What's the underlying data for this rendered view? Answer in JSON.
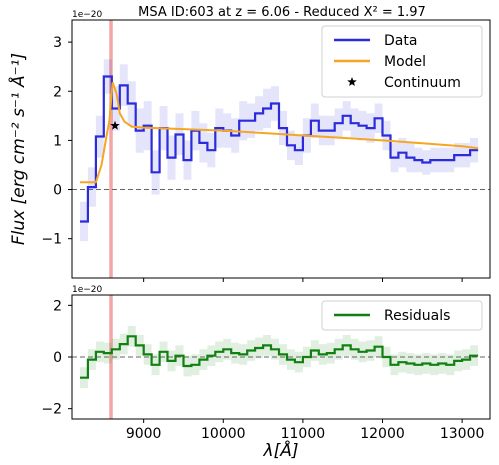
{
  "chart_data": [
    {
      "type": "line",
      "title": "MSA ID:603 at z = 6.06 - Reduced X² = 1.97",
      "ylabel": "Flux [erg cm⁻² s⁻¹ Å⁻¹]",
      "xlabel": "",
      "scale_note": "1e−20",
      "xlim": [
        8100,
        13350
      ],
      "ylim": [
        -1.8,
        3.45
      ],
      "yticks": [
        -1,
        0,
        1,
        2,
        3
      ],
      "xticks": [
        9000,
        10000,
        11000,
        12000,
        13000
      ],
      "show_xtick_labels": false,
      "zero_line": true,
      "vline": {
        "x": 8590,
        "color": "#f4a6a6"
      },
      "legend": {
        "position": "top-right",
        "entries": [
          "Data",
          "Model",
          "Continuum"
        ]
      },
      "series": [
        {
          "name": "Data",
          "style": "step",
          "color": "#2b2bdb",
          "x": [
            8250,
            8350,
            8450,
            8550,
            8650,
            8750,
            8850,
            8950,
            9050,
            9150,
            9250,
            9350,
            9450,
            9550,
            9650,
            9750,
            9850,
            9950,
            10050,
            10150,
            10250,
            10350,
            10450,
            10550,
            10650,
            10750,
            10850,
            10950,
            11050,
            11150,
            11250,
            11350,
            11450,
            11550,
            11650,
            11750,
            11850,
            11950,
            12050,
            12150,
            12250,
            12350,
            12450,
            12550,
            12650,
            12750,
            12850,
            12950,
            13050,
            13150
          ],
          "y": [
            -0.65,
            0.05,
            1.08,
            2.3,
            1.65,
            2.12,
            1.75,
            1.2,
            1.3,
            0.35,
            1.25,
            0.65,
            1.12,
            0.6,
            1.2,
            0.95,
            0.8,
            1.25,
            1.2,
            1.1,
            1.4,
            1.4,
            1.55,
            1.65,
            1.75,
            1.25,
            0.9,
            0.8,
            1.1,
            1.4,
            1.2,
            1.2,
            1.35,
            1.5,
            1.35,
            1.3,
            1.25,
            1.45,
            1.1,
            0.65,
            0.75,
            0.65,
            0.6,
            0.55,
            0.6,
            0.6,
            0.6,
            0.7,
            0.7,
            0.8
          ],
          "err_low": [
            -1.05,
            -0.35,
            0.65,
            1.95,
            1.2,
            1.7,
            1.3,
            0.75,
            0.8,
            -0.1,
            0.8,
            0.2,
            0.7,
            0.2,
            0.8,
            0.55,
            0.45,
            0.85,
            0.85,
            0.75,
            1.0,
            1.05,
            1.2,
            1.25,
            1.4,
            0.9,
            0.6,
            0.5,
            0.75,
            1.05,
            0.9,
            0.9,
            1.05,
            1.2,
            1.05,
            1.0,
            0.95,
            1.15,
            0.8,
            0.35,
            0.45,
            0.35,
            0.35,
            0.3,
            0.35,
            0.35,
            0.35,
            0.45,
            0.45,
            0.55
          ],
          "err_high": [
            -0.25,
            0.45,
            1.5,
            2.65,
            2.1,
            2.55,
            2.2,
            1.65,
            1.8,
            0.8,
            1.7,
            1.1,
            1.55,
            1.0,
            1.6,
            1.35,
            1.15,
            1.65,
            1.55,
            1.45,
            1.8,
            1.75,
            1.9,
            2.05,
            2.1,
            1.6,
            1.2,
            1.1,
            1.45,
            1.75,
            1.5,
            1.5,
            1.65,
            1.8,
            1.65,
            1.6,
            1.55,
            1.75,
            1.4,
            0.95,
            1.05,
            0.95,
            0.85,
            0.8,
            0.85,
            0.85,
            0.85,
            0.95,
            0.95,
            1.05
          ]
        },
        {
          "name": "Model",
          "style": "line",
          "color": "#f5a623",
          "x": [
            8200,
            8400,
            8470,
            8530,
            8570,
            8610,
            8660,
            8700,
            8760,
            8850,
            9000,
            9500,
            10000,
            10500,
            11000,
            11500,
            12000,
            12500,
            13000,
            13200
          ],
          "y": [
            0.15,
            0.15,
            0.5,
            1.05,
            1.4,
            2.18,
            1.95,
            1.55,
            1.38,
            1.28,
            1.26,
            1.23,
            1.2,
            1.15,
            1.1,
            1.05,
            1.0,
            0.94,
            0.88,
            0.84
          ]
        },
        {
          "name": "Continuum",
          "style": "marker",
          "color": "#000000",
          "x": [
            8640
          ],
          "y": [
            1.3
          ]
        }
      ]
    },
    {
      "type": "line",
      "title": "",
      "scale_note": "1e−20",
      "xlabel": "λ[Å]",
      "ylabel": "",
      "xlim": [
        8100,
        13350
      ],
      "ylim": [
        -2.4,
        2.4
      ],
      "yticks": [
        -2,
        0,
        2
      ],
      "xticks": [
        9000,
        10000,
        11000,
        12000,
        13000
      ],
      "show_xtick_labels": true,
      "zero_line": true,
      "vline": {
        "x": 8590,
        "color": "#f4a6a6"
      },
      "legend": {
        "position": "top-right",
        "entries": [
          "Residuals"
        ]
      },
      "series": [
        {
          "name": "Residuals",
          "style": "step",
          "color": "#108010",
          "x": [
            8250,
            8350,
            8450,
            8550,
            8650,
            8750,
            8850,
            8950,
            9050,
            9150,
            9250,
            9350,
            9450,
            9550,
            9650,
            9750,
            9850,
            9950,
            10050,
            10150,
            10250,
            10350,
            10450,
            10550,
            10650,
            10750,
            10850,
            10950,
            11050,
            11150,
            11250,
            11350,
            11450,
            11550,
            11650,
            11750,
            11850,
            11950,
            12050,
            12150,
            12250,
            12350,
            12450,
            12550,
            12650,
            12750,
            12850,
            12950,
            13050,
            13150
          ],
          "y": [
            -0.8,
            -0.1,
            0.2,
            0.15,
            0.3,
            0.5,
            0.8,
            0.45,
            0.1,
            -0.3,
            0.2,
            -0.15,
            0.05,
            -0.35,
            -0.3,
            -0.1,
            0.05,
            0.2,
            0.3,
            0.15,
            0.1,
            0.25,
            0.35,
            0.45,
            0.3,
            0.1,
            -0.1,
            -0.2,
            0.0,
            0.25,
            0.1,
            0.15,
            0.3,
            0.45,
            0.3,
            0.2,
            0.25,
            0.4,
            0.0,
            -0.3,
            -0.2,
            -0.25,
            -0.3,
            -0.25,
            -0.3,
            -0.25,
            -0.3,
            -0.15,
            -0.1,
            0.05
          ],
          "err_low": [
            -1.2,
            -0.5,
            -0.2,
            -0.25,
            -0.1,
            0.1,
            0.4,
            0.05,
            -0.3,
            -0.7,
            -0.2,
            -0.55,
            -0.35,
            -0.75,
            -0.7,
            -0.5,
            -0.35,
            -0.2,
            -0.1,
            -0.25,
            -0.3,
            -0.15,
            -0.05,
            0.05,
            -0.1,
            -0.3,
            -0.5,
            -0.6,
            -0.4,
            -0.15,
            -0.3,
            -0.25,
            -0.1,
            0.05,
            -0.1,
            -0.2,
            -0.15,
            0.0,
            -0.4,
            -0.7,
            -0.6,
            -0.65,
            -0.7,
            -0.65,
            -0.7,
            -0.65,
            -0.7,
            -0.55,
            -0.5,
            -0.35
          ],
          "err_high": [
            -0.4,
            0.3,
            0.6,
            0.55,
            0.7,
            0.9,
            1.2,
            0.85,
            0.5,
            0.1,
            0.6,
            0.25,
            0.45,
            0.05,
            0.1,
            0.3,
            0.45,
            0.6,
            0.7,
            0.55,
            0.5,
            0.65,
            0.75,
            0.85,
            0.7,
            0.5,
            0.3,
            0.2,
            0.4,
            0.65,
            0.5,
            0.55,
            0.7,
            0.85,
            0.7,
            0.6,
            0.65,
            0.8,
            0.4,
            0.1,
            0.2,
            0.15,
            0.1,
            0.15,
            0.1,
            0.15,
            0.1,
            0.25,
            0.3,
            0.45
          ]
        }
      ]
    }
  ]
}
